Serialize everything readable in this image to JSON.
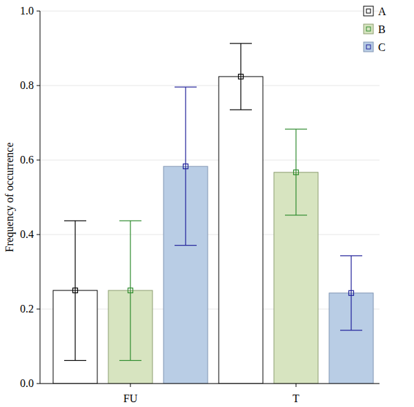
{
  "chart_data": {
    "type": "bar",
    "y_label": "Frequency of occurrence",
    "categories": [
      "FU",
      "T"
    ],
    "series": [
      {
        "name": "A",
        "color": "#ffffff",
        "values": [
          0.25,
          0.824
        ],
        "ci_low": [
          0.062,
          0.735
        ],
        "ci_high": [
          0.437,
          0.913
        ]
      },
      {
        "name": "B",
        "color": "#d7e4c0",
        "values": [
          0.25,
          0.567
        ],
        "ci_low": [
          0.062,
          0.452
        ],
        "ci_high": [
          0.437,
          0.683
        ]
      },
      {
        "name": "C",
        "color": "#b9cde5",
        "values": [
          0.583,
          0.243
        ],
        "ci_low": [
          0.371,
          0.143
        ],
        "ci_high": [
          0.796,
          0.343
        ]
      }
    ],
    "ylim": [
      0,
      1
    ],
    "yticks": [
      {
        "value": 0,
        "label": "0.0"
      },
      {
        "value": 0.2,
        "label": "0.2"
      },
      {
        "value": 0.4,
        "label": "0.4"
      },
      {
        "value": 0.6,
        "label": "0.6"
      },
      {
        "value": 0.8,
        "label": "0.8"
      },
      {
        "value": 1,
        "label": "1.0"
      }
    ],
    "grid": true,
    "legend": "top-right"
  }
}
